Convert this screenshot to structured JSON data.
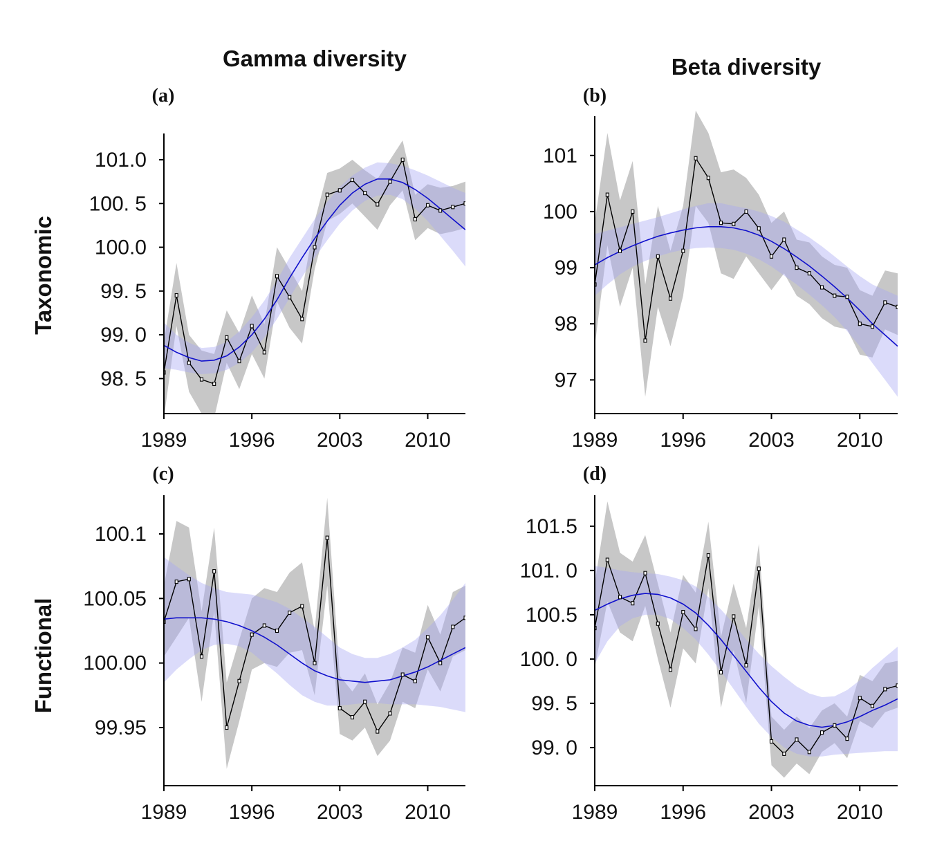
{
  "figure": {
    "column_titles": [
      "Gamma diversity",
      "Beta diversity"
    ],
    "row_titles": [
      "Taxonomic",
      "Functional"
    ]
  },
  "chart_data": [
    {
      "panel": "(a)",
      "type": "line",
      "xlim": [
        1989,
        2013
      ],
      "ylim": [
        98.1,
        101.3
      ],
      "xticks": [
        1989,
        1996,
        2003,
        2010
      ],
      "yticks": [
        98.5,
        99.0,
        99.5,
        100.0,
        100.5,
        101.0
      ],
      "ytick_labels": [
        "98. 5",
        "99. 0",
        "99. 5",
        "100.0",
        "100. 5",
        "101.0"
      ],
      "years": [
        1989,
        1990,
        1991,
        1992,
        1993,
        1994,
        1995,
        1996,
        1997,
        1998,
        1999,
        2000,
        2001,
        2002,
        2003,
        2004,
        2005,
        2006,
        2007,
        2008,
        2009,
        2010,
        2011,
        2012,
        2013
      ],
      "observed": [
        98.57,
        99.45,
        98.68,
        98.49,
        98.44,
        98.97,
        98.7,
        99.1,
        98.8,
        99.67,
        99.43,
        99.18,
        100.0,
        100.6,
        100.65,
        100.77,
        100.62,
        100.49,
        100.75,
        101.0,
        100.32,
        100.48,
        100.42,
        100.46,
        100.5
      ],
      "obs_lower": [
        98.05,
        99.1,
        98.35,
        98.1,
        98.05,
        98.68,
        98.38,
        98.78,
        98.5,
        99.38,
        99.08,
        98.9,
        99.75,
        100.3,
        100.38,
        100.5,
        100.35,
        100.2,
        100.48,
        100.65,
        100.08,
        100.22,
        100.15,
        100.18,
        100.22
      ],
      "obs_upper": [
        98.92,
        99.82,
        99.0,
        98.82,
        98.78,
        99.28,
        99.02,
        99.45,
        99.12,
        100.0,
        99.75,
        99.5,
        100.3,
        100.85,
        100.9,
        101.0,
        100.88,
        100.78,
        101.0,
        101.22,
        100.6,
        100.72,
        100.68,
        100.7,
        100.75
      ],
      "trend": [
        98.88,
        98.8,
        98.74,
        98.7,
        98.71,
        98.76,
        98.86,
        99.0,
        99.18,
        99.4,
        99.65,
        99.88,
        100.1,
        100.3,
        100.48,
        100.62,
        100.72,
        100.78,
        100.78,
        100.74,
        100.66,
        100.56,
        100.44,
        100.32,
        100.2
      ],
      "trend_lower": [
        98.62,
        98.6,
        98.57,
        98.55,
        98.56,
        98.6,
        98.68,
        98.8,
        98.97,
        99.18,
        99.42,
        99.66,
        99.88,
        100.08,
        100.27,
        100.42,
        100.53,
        100.59,
        100.6,
        100.55,
        100.44,
        100.3,
        100.13,
        99.96,
        99.78
      ],
      "trend_upper": [
        99.14,
        99.0,
        98.91,
        98.85,
        98.86,
        98.92,
        99.04,
        99.2,
        99.39,
        99.62,
        99.88,
        100.1,
        100.32,
        100.52,
        100.69,
        100.82,
        100.91,
        100.97,
        100.96,
        100.93,
        100.88,
        100.82,
        100.75,
        100.68,
        100.62
      ]
    },
    {
      "panel": "(b)",
      "type": "line",
      "xlim": [
        1989,
        2013
      ],
      "ylim": [
        96.4,
        101.7
      ],
      "xticks": [
        1989,
        1996,
        2003,
        2010
      ],
      "yticks": [
        97,
        98,
        99,
        100,
        101
      ],
      "ytick_labels": [
        "97",
        "98",
        "99",
        "100",
        "101"
      ],
      "years": [
        1989,
        1990,
        1991,
        1992,
        1993,
        1994,
        1995,
        1996,
        1997,
        1998,
        1999,
        2000,
        2001,
        2002,
        2003,
        2004,
        2005,
        2006,
        2007,
        2008,
        2009,
        2010,
        2011,
        2012,
        2013
      ],
      "observed": [
        98.7,
        100.3,
        99.3,
        100.0,
        97.7,
        99.2,
        98.45,
        99.3,
        100.95,
        100.6,
        99.8,
        99.78,
        100.0,
        99.7,
        99.2,
        99.5,
        99.0,
        98.9,
        98.65,
        98.5,
        98.48,
        98.0,
        97.95,
        98.38,
        98.3
      ],
      "obs_lower": [
        97.6,
        99.4,
        98.3,
        99.0,
        96.7,
        98.3,
        97.6,
        98.5,
        100.1,
        99.8,
        98.9,
        98.8,
        99.2,
        98.9,
        98.6,
        98.9,
        98.5,
        98.35,
        98.1,
        97.95,
        97.9,
        97.45,
        97.4,
        97.9,
        97.8
      ],
      "obs_upper": [
        99.8,
        101.4,
        100.2,
        100.9,
        98.7,
        100.1,
        99.3,
        100.1,
        101.8,
        101.4,
        100.7,
        100.75,
        100.6,
        100.3,
        99.8,
        100.0,
        99.5,
        99.45,
        99.2,
        99.05,
        99.0,
        98.6,
        98.5,
        98.95,
        98.9
      ],
      "trend": [
        99.05,
        99.18,
        99.29,
        99.39,
        99.48,
        99.56,
        99.62,
        99.67,
        99.71,
        99.73,
        99.73,
        99.71,
        99.66,
        99.58,
        99.47,
        99.34,
        99.19,
        99.03,
        98.85,
        98.66,
        98.46,
        98.24,
        98.0,
        97.8,
        97.6
      ],
      "trend_lower": [
        98.5,
        98.7,
        98.88,
        99.02,
        99.12,
        99.2,
        99.27,
        99.32,
        99.35,
        99.36,
        99.35,
        99.32,
        99.25,
        99.15,
        99.02,
        98.86,
        98.7,
        98.52,
        98.33,
        98.12,
        97.87,
        97.6,
        97.3,
        97.0,
        96.7
      ],
      "trend_upper": [
        99.6,
        99.66,
        99.72,
        99.78,
        99.84,
        99.9,
        99.97,
        100.04,
        100.1,
        100.15,
        100.15,
        100.1,
        100.06,
        100.0,
        99.92,
        99.82,
        99.68,
        99.54,
        99.38,
        99.2,
        99.02,
        98.85,
        98.7,
        98.6,
        98.5
      ]
    },
    {
      "panel": "(c)",
      "type": "line",
      "xlim": [
        1989,
        2013
      ],
      "ylim": [
        99.905,
        100.13
      ],
      "xticks": [
        1989,
        1996,
        2003,
        2010
      ],
      "yticks": [
        99.95,
        100.0,
        100.05,
        100.1
      ],
      "ytick_labels": [
        "99.95",
        "100.00",
        "100.05",
        "100.1"
      ],
      "years": [
        1989,
        1990,
        1991,
        1992,
        1993,
        1994,
        1995,
        1996,
        1997,
        1998,
        1999,
        2000,
        2001,
        2002,
        2003,
        2004,
        2005,
        2006,
        2007,
        2008,
        2009,
        2010,
        2011,
        2012,
        2013
      ],
      "observed": [
        100.032,
        100.063,
        100.065,
        100.005,
        100.071,
        99.95,
        99.986,
        100.022,
        100.029,
        100.025,
        100.039,
        100.044,
        100.0,
        100.097,
        99.965,
        99.958,
        99.97,
        99.947,
        99.961,
        99.991,
        99.986,
        100.02,
        100.0,
        100.028,
        100.035
      ],
      "obs_lower": [
        100.005,
        100.02,
        100.035,
        99.97,
        100.04,
        99.918,
        99.955,
        99.995,
        100.0,
        99.997,
        100.008,
        100.01,
        99.975,
        100.06,
        99.945,
        99.94,
        99.95,
        99.928,
        99.94,
        99.97,
        99.965,
        99.995,
        99.978,
        100.005,
        100.01
      ],
      "obs_upper": [
        100.06,
        100.11,
        100.105,
        100.04,
        100.105,
        99.985,
        100.018,
        100.05,
        100.058,
        100.055,
        100.07,
        100.078,
        100.025,
        100.128,
        99.99,
        99.978,
        99.992,
        99.968,
        99.985,
        100.012,
        100.008,
        100.045,
        100.022,
        100.055,
        100.06
      ],
      "trend": [
        100.034,
        100.035,
        100.035,
        100.035,
        100.034,
        100.032,
        100.029,
        100.025,
        100.02,
        100.014,
        100.007,
        100.0,
        99.994,
        99.99,
        99.987,
        99.986,
        99.985,
        99.986,
        99.987,
        99.99,
        99.993,
        99.997,
        100.002,
        100.007,
        100.012
      ],
      "trend_lower": [
        99.985,
        99.995,
        100.003,
        100.01,
        100.014,
        100.015,
        100.013,
        100.008,
        100.0,
        99.992,
        99.983,
        99.975,
        99.97,
        99.967,
        99.967,
        99.968,
        99.969,
        99.969,
        99.968,
        99.968,
        99.968,
        99.967,
        99.966,
        99.964,
        99.962
      ],
      "trend_upper": [
        100.082,
        100.075,
        100.068,
        100.062,
        100.058,
        100.055,
        100.054,
        100.053,
        100.05,
        100.047,
        100.042,
        100.035,
        100.028,
        100.02,
        100.012,
        100.007,
        100.004,
        100.004,
        100.007,
        100.012,
        100.018,
        100.027,
        100.037,
        100.049,
        100.062
      ]
    },
    {
      "panel": "(d)",
      "type": "line",
      "xlim": [
        1989,
        2013
      ],
      "ylim": [
        98.57,
        101.85
      ],
      "xticks": [
        1989,
        1996,
        2003,
        2010
      ],
      "yticks": [
        99.0,
        99.5,
        100.0,
        100.5,
        101.0,
        101.5
      ],
      "ytick_labels": [
        "99. 0",
        "99. 5",
        "100. 0",
        "100.5",
        "101. 0",
        "101.5"
      ],
      "years": [
        1989,
        1990,
        1991,
        1992,
        1993,
        1994,
        1995,
        1996,
        1997,
        1998,
        1999,
        2000,
        2001,
        2002,
        2003,
        2004,
        2005,
        2006,
        2007,
        2008,
        2009,
        2010,
        2011,
        2012,
        2013
      ],
      "observed": [
        100.35,
        101.12,
        100.7,
        100.63,
        100.97,
        100.4,
        99.88,
        100.53,
        100.34,
        101.17,
        99.85,
        100.48,
        99.93,
        101.02,
        99.07,
        98.93,
        99.09,
        98.95,
        99.17,
        99.25,
        99.1,
        99.56,
        99.47,
        99.66,
        99.7
      ],
      "obs_lower": [
        99.9,
        100.65,
        100.3,
        100.2,
        100.6,
        100.0,
        99.45,
        100.12,
        99.95,
        100.8,
        99.45,
        100.1,
        99.5,
        100.6,
        98.8,
        98.66,
        98.82,
        98.7,
        98.95,
        99.05,
        98.88,
        99.3,
        99.22,
        99.4,
        99.45
      ],
      "obs_upper": [
        100.85,
        101.78,
        101.2,
        101.1,
        101.4,
        100.85,
        100.3,
        100.95,
        100.75,
        101.55,
        100.25,
        100.85,
        100.35,
        101.3,
        99.35,
        99.2,
        99.35,
        99.22,
        99.42,
        99.5,
        99.35,
        99.82,
        99.75,
        99.95,
        99.98
      ],
      "trend": [
        100.55,
        100.62,
        100.68,
        100.72,
        100.74,
        100.73,
        100.69,
        100.62,
        100.52,
        100.38,
        100.22,
        100.04,
        99.86,
        99.68,
        99.52,
        99.39,
        99.3,
        99.25,
        99.23,
        99.25,
        99.29,
        99.35,
        99.42,
        99.48,
        99.55
      ],
      "trend_lower": [
        99.95,
        100.2,
        100.37,
        100.46,
        100.5,
        100.5,
        100.45,
        100.35,
        100.22,
        100.05,
        99.86,
        99.66,
        99.46,
        99.27,
        99.12,
        99.0,
        98.93,
        98.9,
        98.9,
        98.92,
        98.93,
        98.94,
        98.95,
        98.96,
        98.96
      ],
      "trend_upper": [
        101.05,
        101.03,
        101.0,
        100.98,
        100.97,
        100.96,
        100.93,
        100.89,
        100.82,
        100.7,
        100.56,
        100.4,
        100.22,
        100.06,
        99.92,
        99.8,
        99.69,
        99.61,
        99.57,
        99.58,
        99.65,
        99.76,
        99.9,
        100.02,
        100.14
      ]
    }
  ]
}
